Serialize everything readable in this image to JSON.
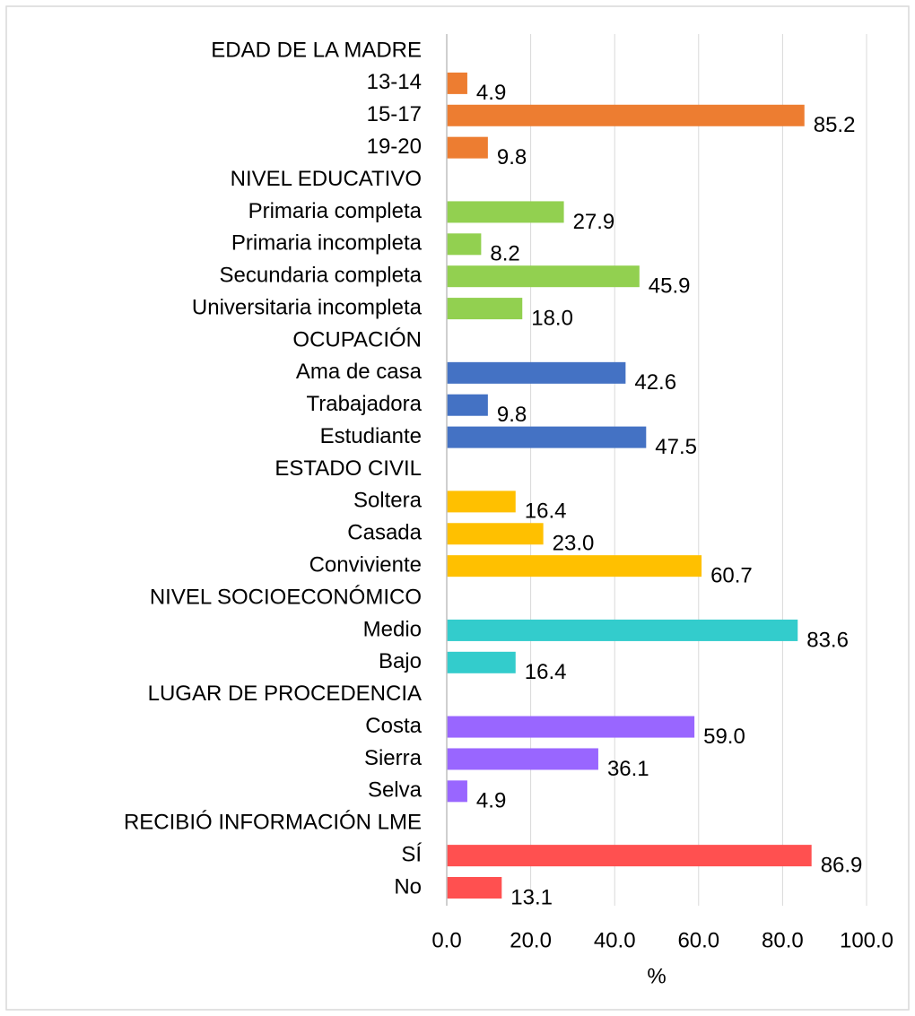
{
  "chart_data": {
    "type": "hbar",
    "x_label": "%",
    "categories": [
      "EDAD DE LA MADRE",
      "13-14",
      "15-17",
      "19-20",
      "NIVEL EDUCATIVO",
      "Primaria completa",
      "Primaria incompleta",
      "Secundaria completa",
      "Universitaria incompleta",
      "OCUPACIÓN",
      "Ama de casa",
      "Trabajadora",
      "Estudiante",
      "ESTADO CIVIL",
      "Soltera",
      "Casada",
      "Conviviente",
      "NIVEL SOCIOECONÓMICO",
      "Medio",
      "Bajo",
      "LUGAR DE PROCEDENCIA",
      "Costa",
      "Sierra",
      "Selva",
      "RECIBIÓ INFORMACIÓN LME",
      "SÍ",
      "No"
    ],
    "values": [
      null,
      4.9,
      85.2,
      9.8,
      null,
      27.9,
      8.2,
      45.9,
      18.0,
      null,
      42.6,
      9.8,
      47.5,
      null,
      16.4,
      23.0,
      60.7,
      null,
      83.6,
      16.4,
      null,
      59.0,
      36.1,
      4.9,
      null,
      86.9,
      13.1
    ],
    "value_labels": [
      null,
      "4.9",
      "85.2",
      "9.8",
      null,
      "27.9",
      "8.2",
      "45.9",
      "18.0",
      null,
      "42.6",
      "9.8",
      "47.5",
      null,
      "16.4",
      "23.0",
      "60.7",
      null,
      "83.6",
      "16.4",
      null,
      "59.0",
      "36.1",
      "4.9",
      null,
      "86.9",
      "13.1"
    ],
    "colors": [
      null,
      "#ED7D31",
      "#ED7D31",
      "#ED7D31",
      null,
      "#92D050",
      "#92D050",
      "#92D050",
      "#92D050",
      null,
      "#4472C4",
      "#4472C4",
      "#4472C4",
      null,
      "#FFC000",
      "#FFC000",
      "#FFC000",
      null,
      "#33CCCC",
      "#33CCCC",
      null,
      "#9966FF",
      "#9966FF",
      "#9966FF",
      null,
      "#FF5050",
      "#FF5050"
    ],
    "xlim": [
      0,
      100
    ],
    "xticks": [
      {
        "value": 0,
        "label": "0.0"
      },
      {
        "value": 20,
        "label": "20.0"
      },
      {
        "value": 40,
        "label": "40.0"
      },
      {
        "value": 60,
        "label": "60.0"
      },
      {
        "value": 80,
        "label": "80.0"
      },
      {
        "value": 100,
        "label": "100.0"
      }
    ],
    "grid": true
  }
}
